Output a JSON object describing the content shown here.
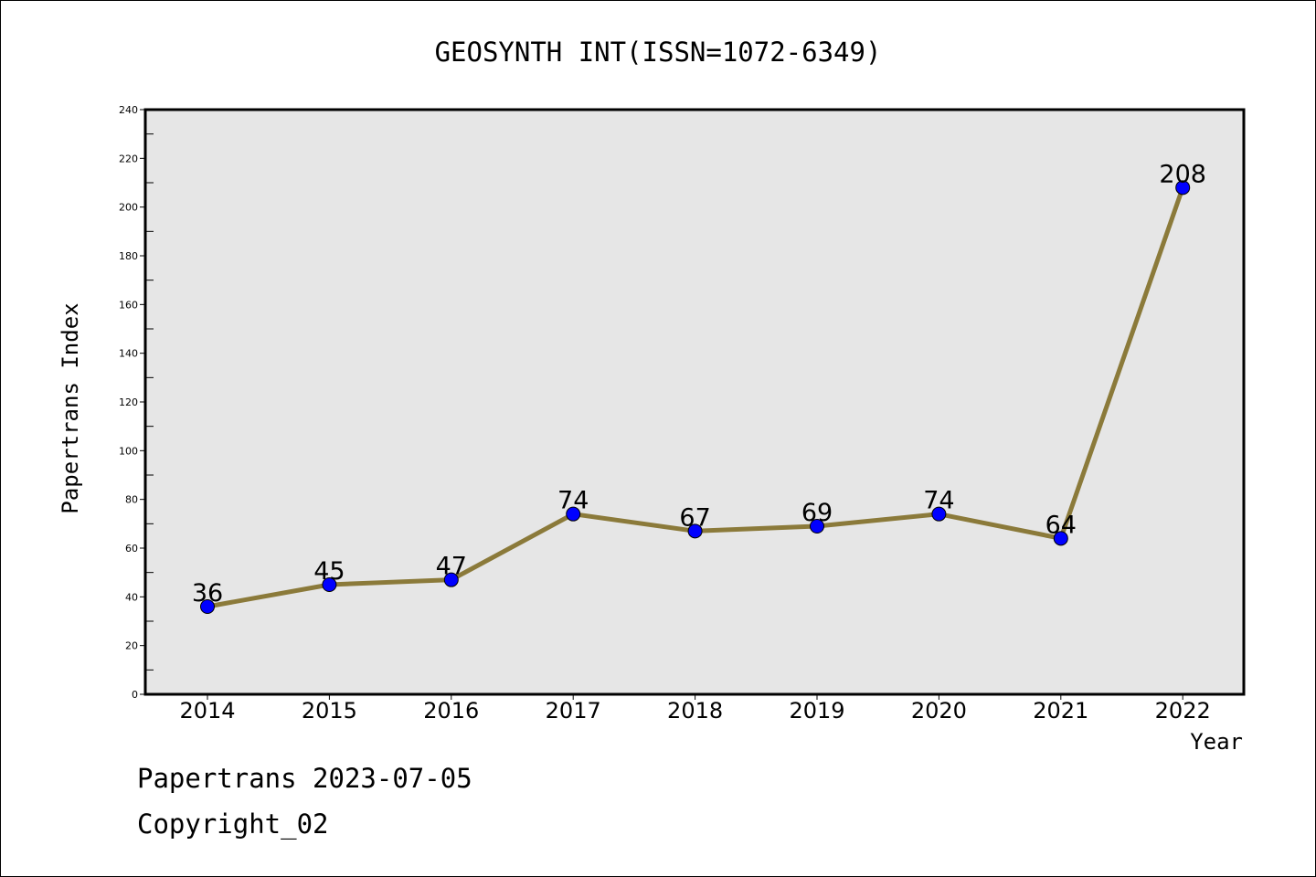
{
  "chart_data": {
    "type": "line",
    "title": "GEOSYNTH INT(ISSN=1072-6349)",
    "xlabel": "Year",
    "ylabel": "Papertrans Index",
    "categories": [
      "2014",
      "2015",
      "2016",
      "2017",
      "2018",
      "2019",
      "2020",
      "2021",
      "2022"
    ],
    "series": [
      {
        "values": [
          36,
          45,
          47,
          74,
          67,
          69,
          74,
          64,
          208
        ]
      }
    ],
    "ylim": [
      0,
      240
    ],
    "yticks": [
      0,
      20,
      40,
      60,
      80,
      100,
      120,
      140,
      160,
      180,
      200,
      220,
      240
    ],
    "grid": false,
    "data_labels": true,
    "colors": {
      "line": "#8B7A3A",
      "marker": "#0000FF",
      "plot_background": "#E6E6E6"
    }
  },
  "footer": {
    "line1": "Papertrans 2023-07-05",
    "line2": "Copyright_02"
  }
}
